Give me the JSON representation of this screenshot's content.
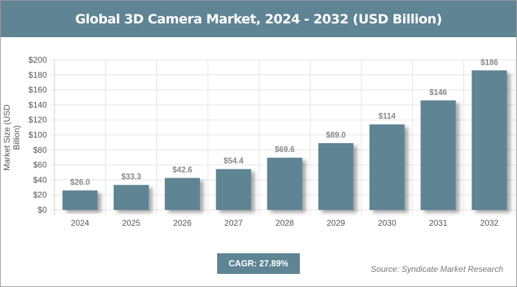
{
  "title": "Global 3D Camera Market, 2024 - 2032 (USD Billion)",
  "cagr": "CAGR: 27.89%",
  "source": "Source: Syndicate Market Research",
  "colors": {
    "bar": "#5f8494",
    "header": "#5f8494"
  },
  "chart_data": {
    "type": "bar",
    "title": "Global 3D Camera Market, 2024 - 2032 (USD Billion)",
    "xlabel": "",
    "ylabel": "Market Size (USD Billion)",
    "categories": [
      "2024",
      "2025",
      "2026",
      "2027",
      "2028",
      "2029",
      "2030",
      "2031",
      "2032"
    ],
    "values": [
      26.0,
      33.3,
      42.6,
      54.4,
      69.6,
      89.0,
      114,
      146,
      186
    ],
    "data_labels": [
      "$26.0",
      "$33.3",
      "$42.6",
      "$54.4",
      "$69.6",
      "$89.0",
      "$114",
      "$146",
      "$186"
    ],
    "ylim": [
      0,
      200
    ],
    "yticks": [
      "$0",
      "$20",
      "$40",
      "$60",
      "$80",
      "$100",
      "$120",
      "$140",
      "$160",
      "$180",
      "$200"
    ],
    "grid": true
  }
}
